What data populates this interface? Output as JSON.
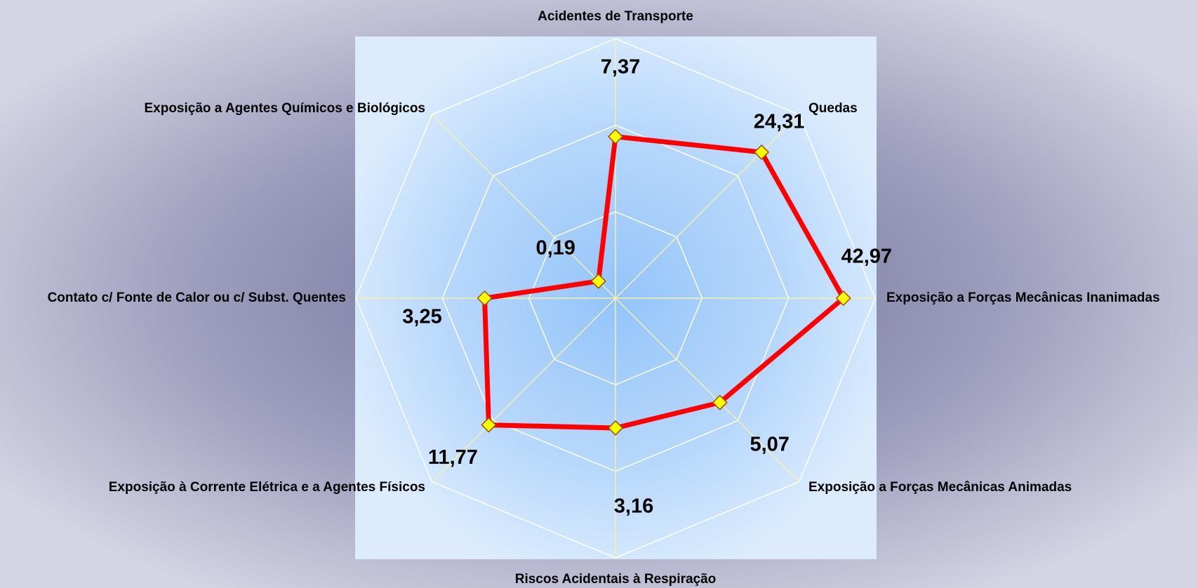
{
  "chart_data": {
    "type": "radar",
    "categories": [
      "Acidentes de Transporte",
      "Quedas",
      "Exposição a Forças Mecânicas Inanimadas",
      "Exposição a Forças Mecânicas Animadas",
      "Riscos Acidentais à Respiração",
      "Exposição à Corrente Elétrica e a Agentes Físicos",
      "Contato c/ Fonte de Calor ou c/ Subst. Quentes",
      "Exposição a Agentes Químicos e Biológicos"
    ],
    "values": [
      7.37,
      24.31,
      42.97,
      5.07,
      3.16,
      11.77,
      3.25,
      0.19
    ],
    "value_labels": [
      "7,37",
      "24,31",
      "42,97",
      "5,07",
      "3,16",
      "11,77",
      "3,25",
      "0,19"
    ],
    "color": "#ff0000",
    "marker_color": "#ffff00",
    "log_scale": true,
    "rlim": [
      0.1,
      100
    ],
    "rticks": [
      1,
      10,
      100
    ],
    "grid": true
  }
}
